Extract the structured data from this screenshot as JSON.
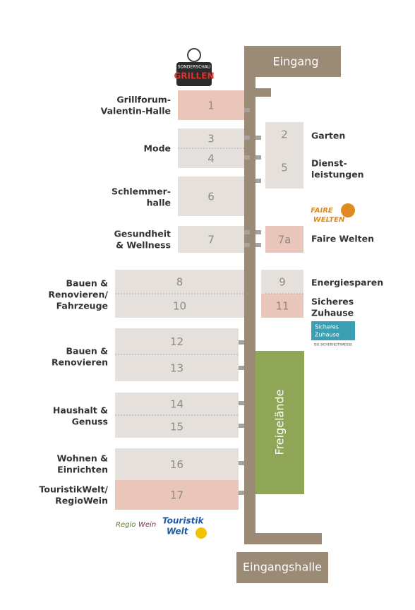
{
  "entrances": {
    "top": "Eingang",
    "bottom": "Eingangshalle"
  },
  "outdoor": "Freigelände",
  "halls": [
    {
      "number": "1"
    },
    {
      "number": "2"
    },
    {
      "number": "3"
    },
    {
      "number": "4"
    },
    {
      "number": "5"
    },
    {
      "number": "6"
    },
    {
      "number": "7"
    },
    {
      "number": "7a"
    },
    {
      "number": "8"
    },
    {
      "number": "9"
    },
    {
      "number": "10"
    },
    {
      "number": "11"
    },
    {
      "number": "12"
    },
    {
      "number": "13"
    },
    {
      "number": "14"
    },
    {
      "number": "15"
    },
    {
      "number": "16"
    },
    {
      "number": "17"
    }
  ],
  "labels": [
    {
      "lines": [
        "Grillforum-",
        "Valentin-Halle"
      ]
    },
    {
      "lines": [
        "Mode"
      ]
    },
    {
      "lines": [
        "Schlemmer-",
        "halle"
      ]
    },
    {
      "lines": [
        "Gesundheit",
        "& Wellness"
      ]
    },
    {
      "lines": [
        "Bauen &",
        "Renovieren/",
        "Fahrzeuge"
      ]
    },
    {
      "lines": [
        "Bauen &",
        "Renovieren"
      ]
    },
    {
      "lines": [
        "Haushalt &",
        "Genuss"
      ]
    },
    {
      "lines": [
        "Wohnen &",
        "Einrichten"
      ]
    },
    {
      "lines": [
        "TouristikWelt/",
        "RegioWein"
      ]
    },
    {
      "lines": [
        "Garten"
      ]
    },
    {
      "lines": [
        "Dienst-",
        "leistungen"
      ]
    },
    {
      "lines": [
        "Faire Welten"
      ]
    },
    {
      "lines": [
        "Energiesparen"
      ]
    },
    {
      "lines": [
        "Sicheres",
        "Zuhause"
      ]
    }
  ],
  "logos": {
    "grillen": [
      "SONDERSCHAU",
      "GRILLEN"
    ],
    "faire_welten": [
      "FAIRE",
      "WELTEN"
    ],
    "sicheres_zuhause": [
      "Sicheres",
      "Zuhause",
      "DIE SICHERHEITSMESSE"
    ],
    "regio_wein": [
      "Regio",
      "Wein"
    ],
    "touristik_welt": [
      "Touristik",
      "Welt"
    ]
  }
}
